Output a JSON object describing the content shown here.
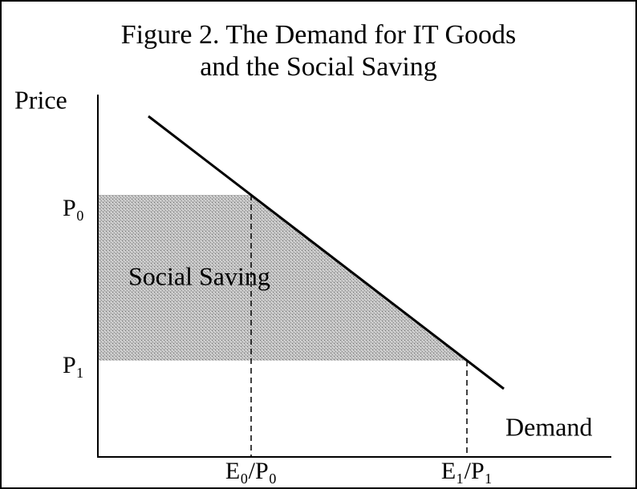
{
  "title": [
    "Figure 2. The Demand for IT Goods",
    "and the Social Saving"
  ],
  "axes": {
    "y_label": "Price",
    "x_label": "Demand"
  },
  "price_labels": [
    "P₀",
    "P₁"
  ],
  "quantity_labels": [
    "E₀/P₀",
    "E₁/P₁"
  ],
  "region_label": "Social Saving"
}
